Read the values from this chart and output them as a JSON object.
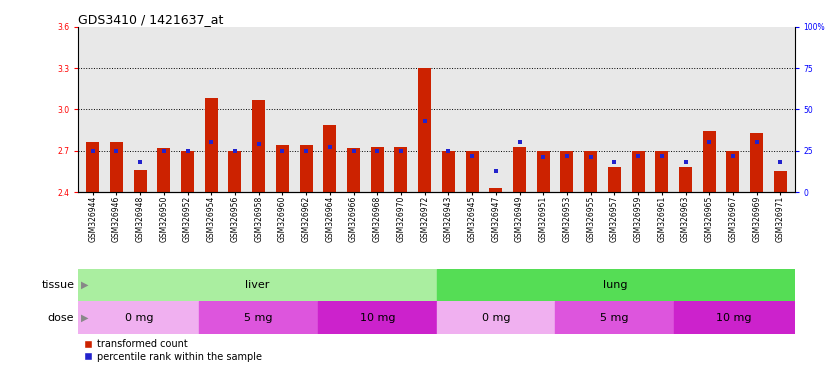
{
  "title": "GDS3410 / 1421637_at",
  "samples": [
    "GSM326944",
    "GSM326946",
    "GSM326948",
    "GSM326950",
    "GSM326952",
    "GSM326954",
    "GSM326956",
    "GSM326958",
    "GSM326960",
    "GSM326962",
    "GSM326964",
    "GSM326966",
    "GSM326968",
    "GSM326970",
    "GSM326972",
    "GSM326943",
    "GSM326945",
    "GSM326947",
    "GSM326949",
    "GSM326951",
    "GSM326953",
    "GSM326955",
    "GSM326957",
    "GSM326959",
    "GSM326961",
    "GSM326963",
    "GSM326965",
    "GSM326967",
    "GSM326969",
    "GSM326971"
  ],
  "transformed_count": [
    2.76,
    2.76,
    2.56,
    2.72,
    2.7,
    3.08,
    2.7,
    3.07,
    2.74,
    2.74,
    2.89,
    2.72,
    2.73,
    2.73,
    3.3,
    2.7,
    2.7,
    2.43,
    2.73,
    2.7,
    2.7,
    2.7,
    2.58,
    2.7,
    2.7,
    2.58,
    2.84,
    2.7,
    2.83,
    2.55
  ],
  "percentile_rank": [
    25,
    25,
    18,
    25,
    25,
    30,
    25,
    29,
    25,
    25,
    27,
    25,
    25,
    25,
    43,
    25,
    22,
    13,
    30,
    21,
    22,
    21,
    18,
    22,
    22,
    18,
    30,
    22,
    30,
    18
  ],
  "ylim_left": [
    2.4,
    3.6
  ],
  "ylim_right": [
    0,
    100
  ],
  "yticks_left": [
    2.4,
    2.7,
    3.0,
    3.3,
    3.6
  ],
  "yticks_right": [
    0,
    25,
    50,
    75,
    100
  ],
  "hlines": [
    2.7,
    3.0,
    3.3
  ],
  "bar_color": "#cc2200",
  "percentile_color": "#2222cc",
  "plot_bg": "#e8e8e8",
  "liver_color": "#aaeea0",
  "lung_color": "#55dd55",
  "dose_color_0": "#f0b0f0",
  "dose_color_5": "#dd55dd",
  "dose_color_10": "#cc22cc",
  "title_fontsize": 9,
  "tick_fontsize": 5.5,
  "label_fontsize": 8,
  "row_label_fontsize": 8
}
